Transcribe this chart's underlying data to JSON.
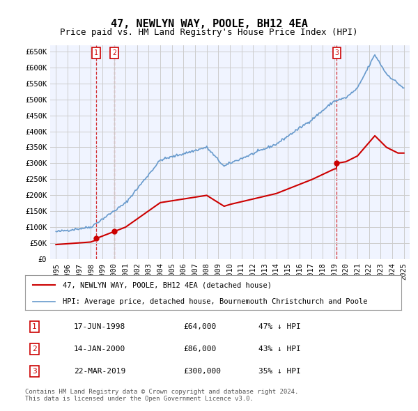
{
  "title": "47, NEWLYN WAY, POOLE, BH12 4EA",
  "subtitle": "Price paid vs. HM Land Registry's House Price Index (HPI)",
  "xlabel": "",
  "ylabel": "",
  "ylim": [
    0,
    670000
  ],
  "yticks": [
    0,
    50000,
    100000,
    150000,
    200000,
    250000,
    300000,
    350000,
    400000,
    450000,
    500000,
    550000,
    600000,
    650000
  ],
  "ytick_labels": [
    "£0",
    "£50K",
    "£100K",
    "£150K",
    "£200K",
    "£250K",
    "£300K",
    "£350K",
    "£400K",
    "£450K",
    "£500K",
    "£550K",
    "£600K",
    "£650K"
  ],
  "hpi_color": "#6699cc",
  "price_color": "#cc0000",
  "dashed_color": "#cc0000",
  "background_color": "#ffffff",
  "grid_color": "#cccccc",
  "transaction_color": "#cc0000",
  "transactions": [
    {
      "date": 1998.46,
      "price": 64000,
      "label": "1"
    },
    {
      "date": 2000.04,
      "price": 86000,
      "label": "2"
    },
    {
      "date": 2019.22,
      "price": 300000,
      "label": "3"
    }
  ],
  "table_rows": [
    {
      "num": "1",
      "date": "17-JUN-1998",
      "price": "£64,000",
      "hpi": "47% ↓ HPI"
    },
    {
      "num": "2",
      "date": "14-JAN-2000",
      "price": "£86,000",
      "hpi": "43% ↓ HPI"
    },
    {
      "num": "3",
      "date": "22-MAR-2019",
      "price": "£300,000",
      "hpi": "35% ↓ HPI"
    }
  ],
  "legend_entries": [
    "47, NEWLYN WAY, POOLE, BH12 4EA (detached house)",
    "HPI: Average price, detached house, Bournemouth Christchurch and Poole"
  ],
  "footer": "Contains HM Land Registry data © Crown copyright and database right 2024.\nThis data is licensed under the Open Government Licence v3.0.",
  "title_fontsize": 11,
  "subtitle_fontsize": 9,
  "tick_fontsize": 7.5,
  "label_fontsize": 7.5
}
